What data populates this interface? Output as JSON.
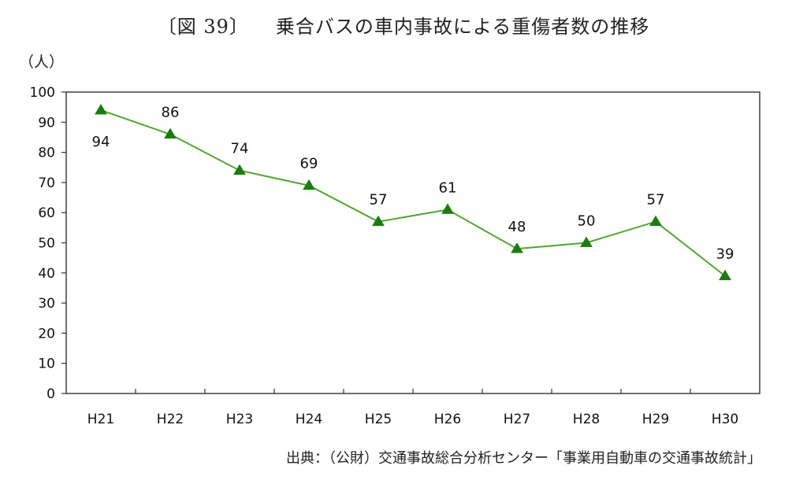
{
  "title": {
    "figure_label": "〔図 39〕",
    "text": "乗合バスの車内事故による重傷者数の推移"
  },
  "unit_label": "（人）",
  "source_note": "出典：（公財）交通事故総合分析センター「事業用自動車の交通事故統計」",
  "colors": {
    "line": "#4ea72e",
    "marker": "#1e7b12",
    "axis": "#333333"
  },
  "chart_data": {
    "type": "line",
    "title": "乗合バスの車内事故による重傷者数の推移",
    "xlabel": "",
    "ylabel": "（人）",
    "categories": [
      "H21",
      "H22",
      "H23",
      "H24",
      "H25",
      "H26",
      "H27",
      "H28",
      "H29",
      "H30"
    ],
    "series": [
      {
        "name": "重傷者数",
        "values": [
          94,
          86,
          74,
          69,
          57,
          61,
          48,
          50,
          57,
          39
        ],
        "marker": "triangle"
      }
    ],
    "ylim": [
      0,
      100
    ],
    "yticks": [
      0,
      10,
      20,
      30,
      40,
      50,
      60,
      70,
      80,
      90,
      100
    ],
    "grid": false,
    "legend": "none",
    "data_labels": [
      "94",
      "86",
      "74",
      "69",
      "57",
      "61",
      "48",
      "50",
      "57",
      "39"
    ]
  }
}
